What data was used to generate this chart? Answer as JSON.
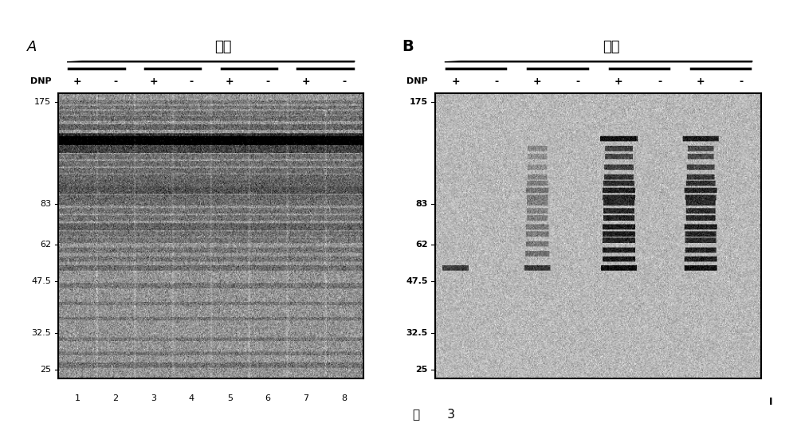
{
  "title_A": "衰老",
  "title_B": "衰老",
  "label_A": "A",
  "label_B": "B",
  "dnp_label": "DNP",
  "dnp_signs": [
    "+",
    "-",
    "+",
    "-",
    "+",
    "-",
    "+",
    "-"
  ],
  "lane_numbers": [
    "1",
    "2",
    "3",
    "4",
    "5",
    "6",
    "7",
    "8"
  ],
  "mw_markers": [
    175,
    83,
    62,
    47.5,
    32.5,
    25
  ],
  "figure_label": "图       3",
  "panel_I_label": "I",
  "figure_bg": "#ffffff"
}
